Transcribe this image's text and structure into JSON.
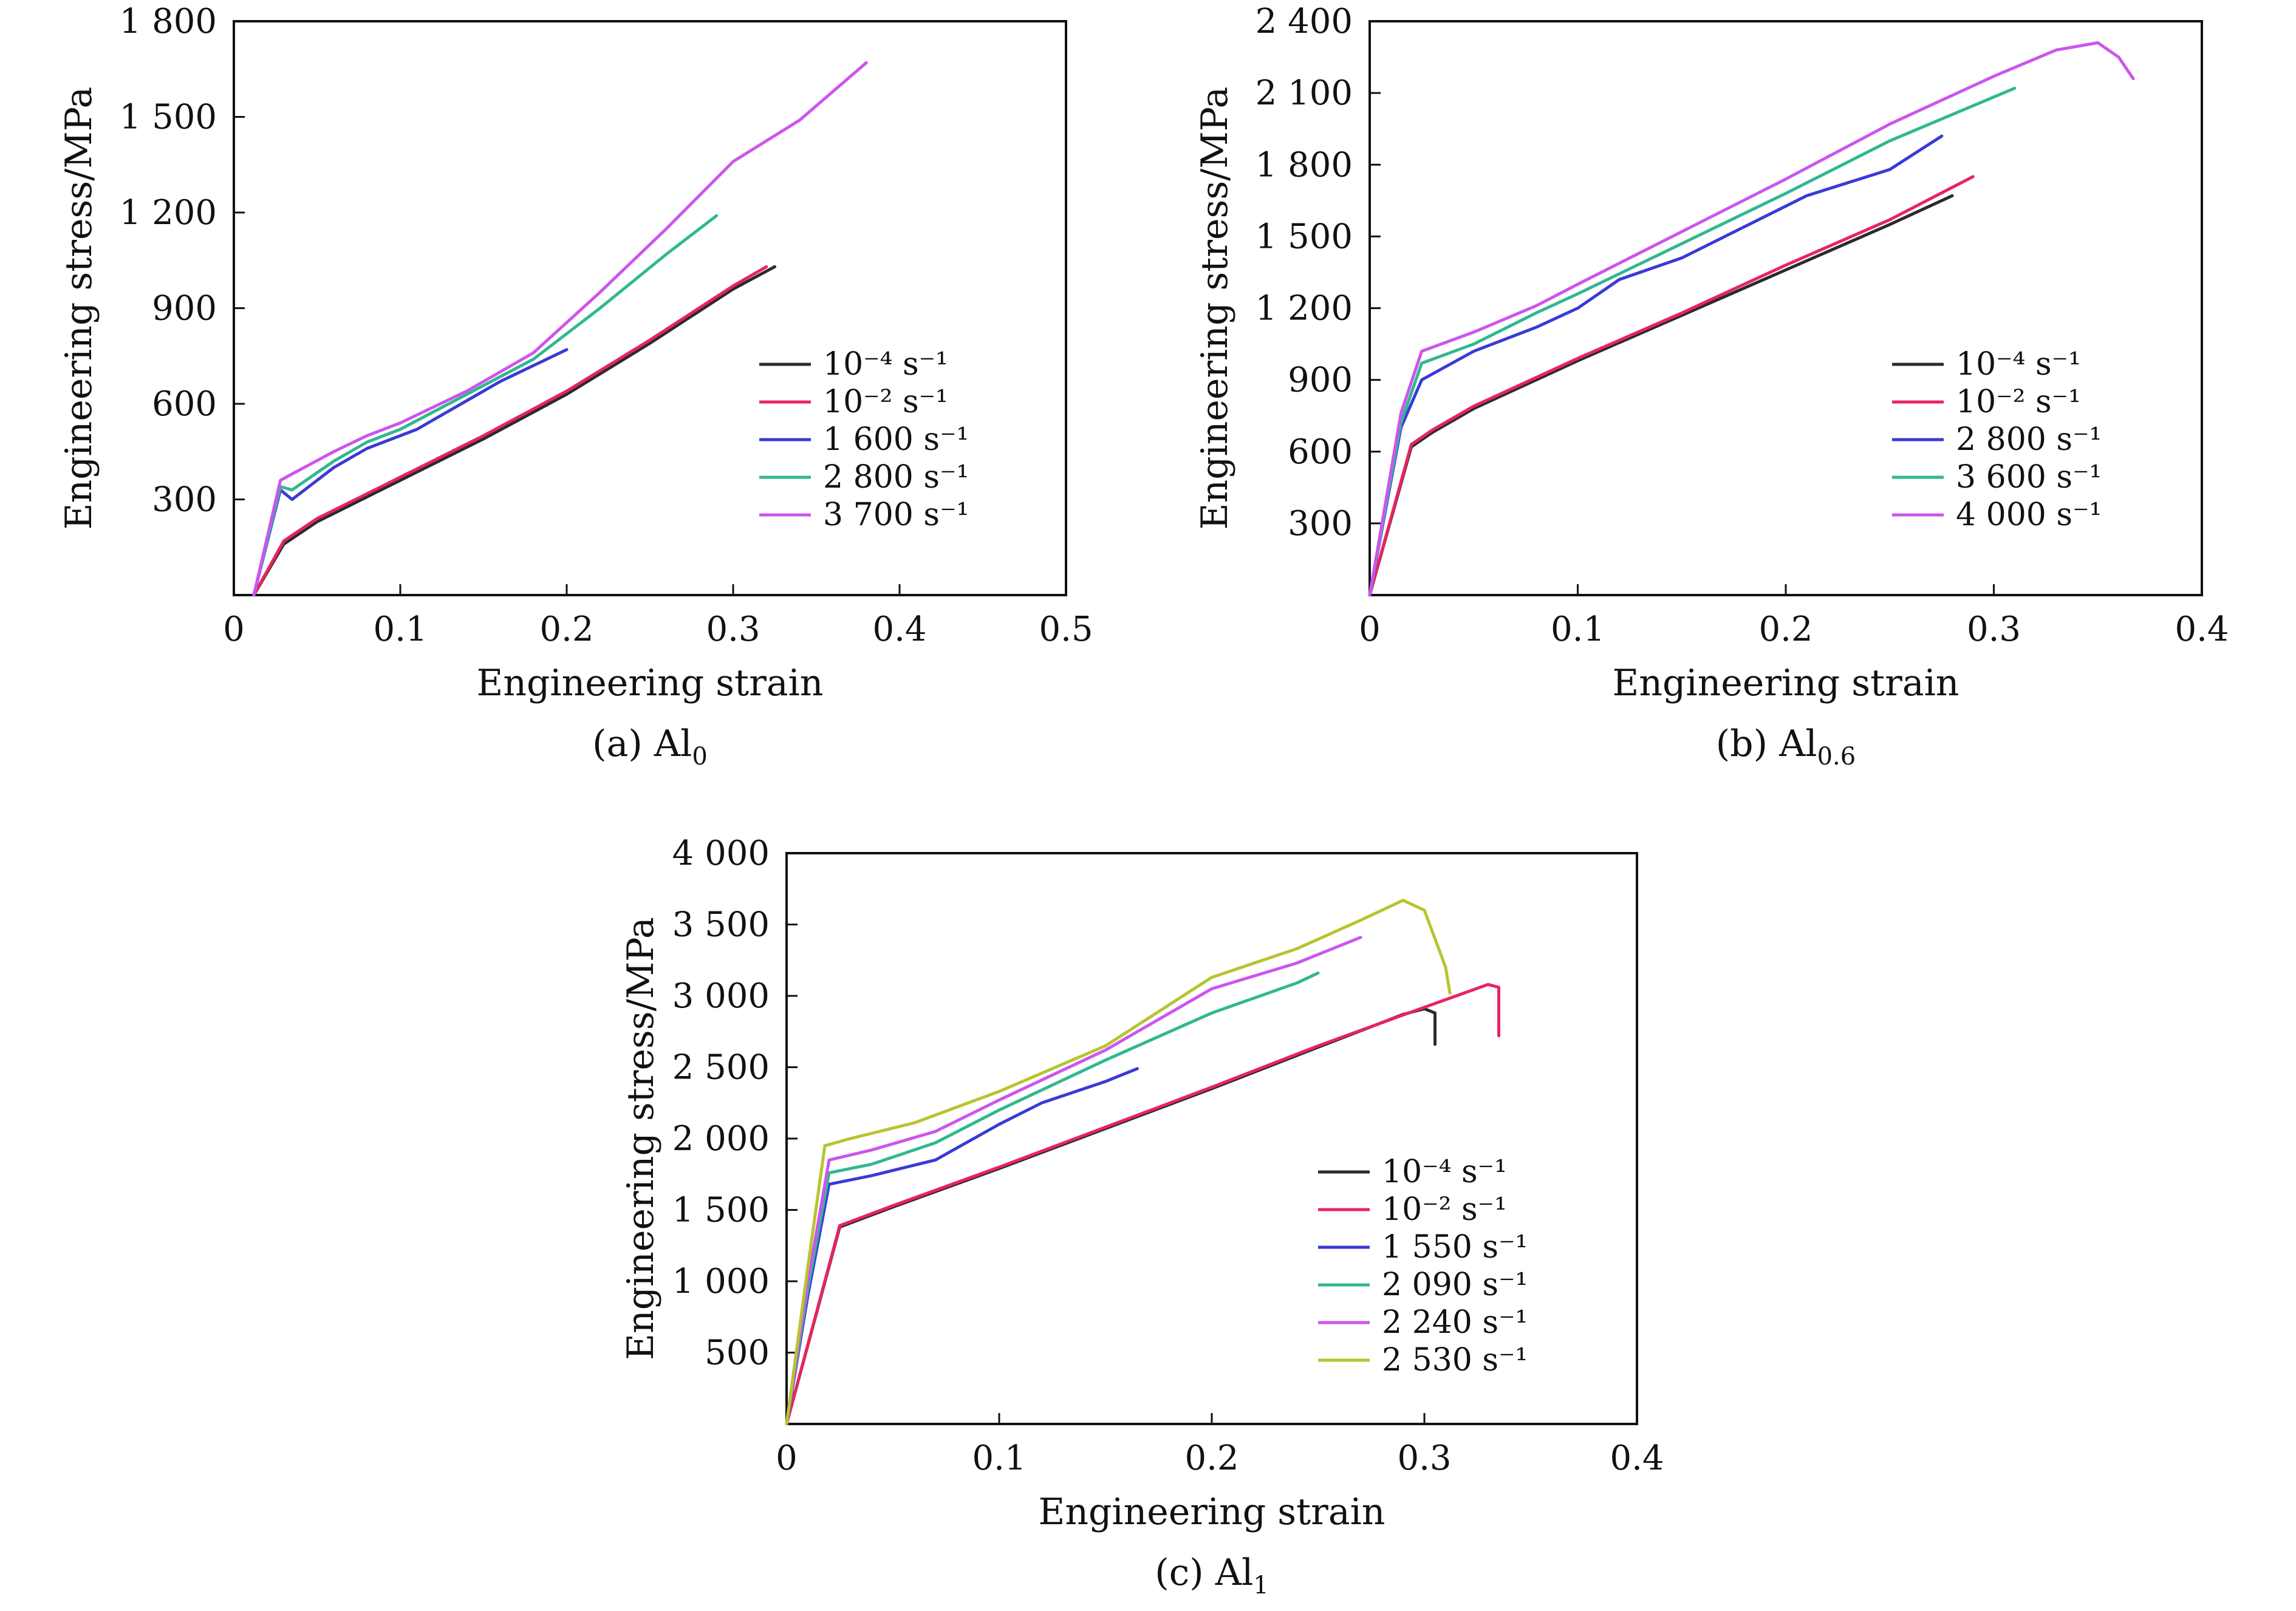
{
  "chart_data": [
    {
      "type": "line",
      "caption": "(a) Al",
      "caption_sub": "0",
      "xlabel": "Engineering strain",
      "ylabel": "Engineering stress/MPa",
      "xlim": [
        0,
        0.5
      ],
      "ylim": [
        0,
        1800
      ],
      "xticks": [
        0,
        0.1,
        0.2,
        0.3,
        0.4,
        0.5
      ],
      "xtick_labels": [
        "0",
        "0.1",
        "0.2",
        "0.3",
        "0.4",
        "0.5"
      ],
      "yticks": [
        300,
        600,
        900,
        1200,
        1500,
        1800
      ],
      "ytick_labels": [
        "300",
        "600",
        "900",
        "1 200",
        "1 500",
        "1 800"
      ],
      "legend_position": "right",
      "grid": false,
      "series": [
        {
          "name": "10⁻⁴ s⁻¹",
          "color": "#2b2b2b",
          "x": [
            0.012,
            0.03,
            0.05,
            0.1,
            0.15,
            0.2,
            0.25,
            0.3,
            0.325
          ],
          "y": [
            0,
            160,
            230,
            360,
            490,
            630,
            790,
            960,
            1030
          ]
        },
        {
          "name": "10⁻² s⁻¹",
          "color": "#e8245f",
          "x": [
            0.012,
            0.03,
            0.05,
            0.1,
            0.15,
            0.2,
            0.25,
            0.3,
            0.32
          ],
          "y": [
            0,
            170,
            240,
            370,
            500,
            640,
            800,
            970,
            1030
          ]
        },
        {
          "name": "1 600 s⁻¹",
          "color": "#3a3ad6",
          "x": [
            0.012,
            0.028,
            0.035,
            0.06,
            0.08,
            0.1,
            0.11,
            0.13,
            0.16,
            0.18,
            0.2
          ],
          "y": [
            0,
            330,
            300,
            400,
            460,
            500,
            520,
            580,
            670,
            720,
            770
          ]
        },
        {
          "name": "2 800 s⁻¹",
          "color": "#30b890",
          "x": [
            0.012,
            0.028,
            0.035,
            0.06,
            0.08,
            0.1,
            0.14,
            0.18,
            0.22,
            0.26,
            0.29
          ],
          "y": [
            0,
            340,
            330,
            420,
            480,
            520,
            630,
            740,
            900,
            1070,
            1190
          ]
        },
        {
          "name": "3 700 s⁻¹",
          "color": "#cc55ee",
          "x": [
            0.012,
            0.028,
            0.035,
            0.06,
            0.08,
            0.1,
            0.14,
            0.18,
            0.22,
            0.26,
            0.3,
            0.34,
            0.38
          ],
          "y": [
            0,
            360,
            380,
            450,
            500,
            540,
            640,
            760,
            950,
            1150,
            1360,
            1490,
            1670
          ]
        }
      ]
    },
    {
      "type": "line",
      "caption": "(b) Al",
      "caption_sub": "0.6",
      "xlabel": "Engineering strain",
      "ylabel": "Engineering stress/MPa",
      "xlim": [
        0,
        0.4
      ],
      "ylim": [
        0,
        2400
      ],
      "xticks": [
        0,
        0.1,
        0.2,
        0.3,
        0.4
      ],
      "xtick_labels": [
        "0",
        "0.1",
        "0.2",
        "0.3",
        "0.4"
      ],
      "yticks": [
        300,
        600,
        900,
        1200,
        1500,
        1800,
        2100,
        2400
      ],
      "ytick_labels": [
        "300",
        "600",
        "900",
        "1 200",
        "1 500",
        "1 800",
        "2 100",
        "2 400"
      ],
      "legend_position": "right",
      "grid": false,
      "series": [
        {
          "name": "10⁻⁴ s⁻¹",
          "color": "#2b2b2b",
          "x": [
            0,
            0.02,
            0.03,
            0.05,
            0.1,
            0.15,
            0.2,
            0.25,
            0.28
          ],
          "y": [
            0,
            620,
            680,
            780,
            980,
            1170,
            1360,
            1550,
            1670
          ]
        },
        {
          "name": "10⁻² s⁻¹",
          "color": "#e8245f",
          "x": [
            0,
            0.02,
            0.03,
            0.05,
            0.1,
            0.15,
            0.2,
            0.25,
            0.29
          ],
          "y": [
            0,
            630,
            690,
            790,
            990,
            1180,
            1380,
            1570,
            1750
          ]
        },
        {
          "name": "2 800 s⁻¹",
          "color": "#3a3ad6",
          "x": [
            0,
            0.015,
            0.025,
            0.05,
            0.08,
            0.1,
            0.12,
            0.15,
            0.18,
            0.21,
            0.25,
            0.275
          ],
          "y": [
            0,
            700,
            900,
            1020,
            1120,
            1200,
            1320,
            1410,
            1540,
            1670,
            1780,
            1920
          ]
        },
        {
          "name": "3 600 s⁻¹",
          "color": "#30b890",
          "x": [
            0,
            0.015,
            0.025,
            0.05,
            0.08,
            0.1,
            0.15,
            0.2,
            0.25,
            0.31
          ],
          "y": [
            0,
            720,
            970,
            1050,
            1180,
            1260,
            1470,
            1680,
            1900,
            2120
          ]
        },
        {
          "name": "4 000 s⁻¹",
          "color": "#cc55ee",
          "x": [
            0,
            0.015,
            0.025,
            0.05,
            0.08,
            0.1,
            0.15,
            0.2,
            0.25,
            0.3,
            0.33,
            0.35,
            0.36,
            0.367
          ],
          "y": [
            0,
            760,
            1020,
            1100,
            1210,
            1300,
            1520,
            1740,
            1970,
            2170,
            2280,
            2310,
            2250,
            2160
          ]
        }
      ]
    },
    {
      "type": "line",
      "caption": "(c) Al",
      "caption_sub": "1",
      "xlabel": "Engineering strain",
      "ylabel": "Engineering stress/MPa",
      "xlim": [
        0,
        0.4
      ],
      "ylim": [
        0,
        4000
      ],
      "xticks": [
        0,
        0.1,
        0.2,
        0.3,
        0.4
      ],
      "xtick_labels": [
        "0",
        "0.1",
        "0.2",
        "0.3",
        "0.4"
      ],
      "yticks": [
        500,
        1000,
        1500,
        2000,
        2500,
        3000,
        3500,
        4000
      ],
      "ytick_labels": [
        "500",
        "1 000",
        "1 500",
        "2 000",
        "2 500",
        "3 000",
        "3 500",
        "4 000"
      ],
      "legend_position": "bottom-right",
      "grid": false,
      "series": [
        {
          "name": "10⁻⁴ s⁻¹",
          "color": "#2b2b2b",
          "x": [
            0,
            0.025,
            0.05,
            0.1,
            0.15,
            0.2,
            0.25,
            0.29,
            0.3,
            0.305,
            0.305
          ],
          "y": [
            0,
            1380,
            1520,
            1790,
            2070,
            2350,
            2640,
            2870,
            2910,
            2880,
            2660
          ]
        },
        {
          "name": "10⁻² s⁻¹",
          "color": "#e8245f",
          "x": [
            0,
            0.025,
            0.05,
            0.1,
            0.15,
            0.2,
            0.25,
            0.3,
            0.33,
            0.335,
            0.335
          ],
          "y": [
            0,
            1390,
            1530,
            1800,
            2080,
            2360,
            2650,
            2920,
            3080,
            3060,
            2720
          ]
        },
        {
          "name": "1 550 s⁻¹",
          "color": "#3a3ad6",
          "x": [
            0,
            0.01,
            0.02,
            0.04,
            0.07,
            0.1,
            0.12,
            0.15,
            0.165
          ],
          "y": [
            0,
            900,
            1680,
            1740,
            1850,
            2100,
            2250,
            2400,
            2490
          ]
        },
        {
          "name": "2 090 s⁻¹",
          "color": "#30b890",
          "x": [
            0,
            0.01,
            0.02,
            0.04,
            0.07,
            0.1,
            0.15,
            0.2,
            0.24,
            0.25
          ],
          "y": [
            0,
            950,
            1760,
            1820,
            1970,
            2200,
            2550,
            2880,
            3090,
            3160
          ]
        },
        {
          "name": "2 240 s⁻¹",
          "color": "#cc55ee",
          "x": [
            0,
            0.01,
            0.02,
            0.04,
            0.07,
            0.1,
            0.15,
            0.2,
            0.24,
            0.27
          ],
          "y": [
            0,
            1000,
            1850,
            1920,
            2050,
            2270,
            2620,
            3050,
            3230,
            3410
          ]
        },
        {
          "name": "2 530 s⁻¹",
          "color": "#b8c42e",
          "x": [
            0,
            0.01,
            0.018,
            0.03,
            0.06,
            0.1,
            0.15,
            0.2,
            0.24,
            0.27,
            0.29,
            0.3,
            0.31,
            0.312
          ],
          "y": [
            0,
            1100,
            1950,
            2000,
            2110,
            2330,
            2650,
            3130,
            3330,
            3530,
            3670,
            3600,
            3200,
            3020
          ]
        }
      ]
    }
  ]
}
